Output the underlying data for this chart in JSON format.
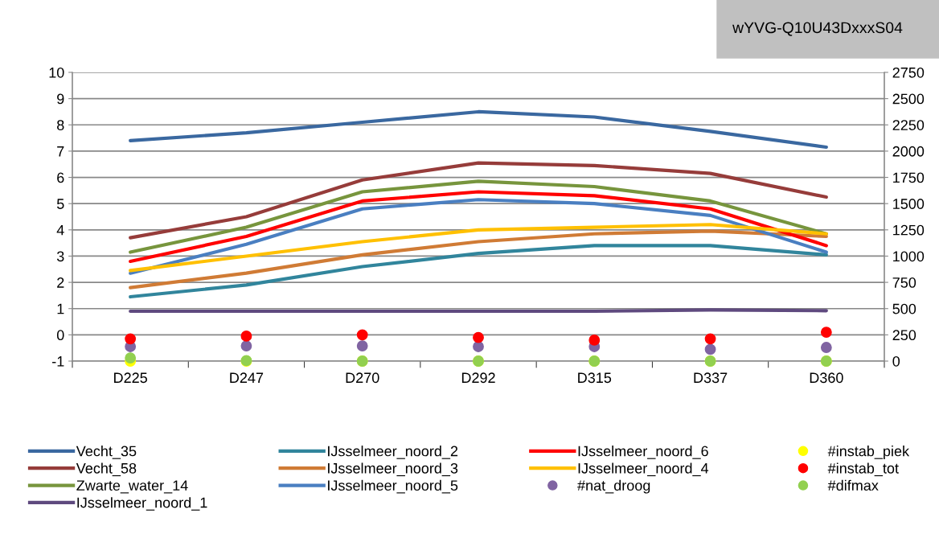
{
  "chart_data": {
    "type": "line",
    "title": "wYVG-Q10U43DxxxS04",
    "categories": [
      "D225",
      "D247",
      "D270",
      "D292",
      "D315",
      "D337",
      "D360"
    ],
    "ylim": [
      -1,
      10
    ],
    "yticks": [
      -1,
      0,
      1,
      2,
      3,
      4,
      5,
      6,
      7,
      8,
      9,
      10
    ],
    "y2lim": [
      0,
      2750
    ],
    "y2ticks": [
      0,
      250,
      500,
      750,
      1000,
      1250,
      1500,
      1750,
      2000,
      2250,
      2500,
      2750
    ],
    "grid": "y",
    "legend": "bottom",
    "series": [
      {
        "name": "Vecht_35",
        "color": "#3a68a0",
        "values": [
          7.4,
          7.7,
          8.1,
          8.5,
          8.3,
          7.75,
          7.15
        ]
      },
      {
        "name": "Vecht_58",
        "color": "#963c3a",
        "values": [
          3.7,
          4.5,
          5.9,
          6.55,
          6.45,
          6.15,
          5.25
        ]
      },
      {
        "name": "Zwarte_water_14",
        "color": "#77953d",
        "values": [
          3.15,
          4.1,
          5.45,
          5.85,
          5.65,
          5.1,
          3.85
        ]
      },
      {
        "name": "IJsselmeer_noord_1",
        "color": "#5f4a7f",
        "values": [
          0.9,
          0.9,
          0.9,
          0.9,
          0.9,
          0.95,
          0.92
        ]
      },
      {
        "name": "IJsselmeer_noord_2",
        "color": "#31859c",
        "values": [
          1.45,
          1.9,
          2.6,
          3.1,
          3.4,
          3.4,
          3.05
        ]
      },
      {
        "name": "IJsselmeer_noord_3",
        "color": "#d07b35",
        "values": [
          1.8,
          2.35,
          3.05,
          3.55,
          3.85,
          3.95,
          3.75
        ]
      },
      {
        "name": "IJsselmeer_noord_5",
        "color": "#4a7fc1",
        "values": [
          2.35,
          3.45,
          4.8,
          5.15,
          5.0,
          4.55,
          3.15
        ]
      },
      {
        "name": "IJsselmeer_noord_6",
        "color": "#ff0000",
        "values": [
          2.8,
          3.75,
          5.1,
          5.45,
          5.3,
          4.8,
          3.4
        ]
      },
      {
        "name": "IJsselmeer_noord_4",
        "color": "#ffc000",
        "values": [
          2.45,
          3.0,
          3.55,
          4.0,
          4.1,
          4.2,
          3.85
        ]
      },
      {
        "name": "#nat_droog",
        "type": "scatter",
        "axis": "y2",
        "color": "#8064a2",
        "values": [
          138,
          145,
          145,
          138,
          138,
          112,
          130
        ]
      },
      {
        "name": "#instab_piek",
        "type": "scatter",
        "axis": "y2",
        "color": "#ffff00",
        "values": [
          0,
          0,
          0,
          0,
          0,
          0,
          0
        ]
      },
      {
        "name": "#instab_tot",
        "type": "scatter",
        "axis": "y2",
        "color": "#ff0000",
        "values": [
          212,
          238,
          250,
          225,
          200,
          212,
          275
        ]
      },
      {
        "name": "#difmax",
        "type": "scatter",
        "axis": "y2",
        "color": "#92d050",
        "values": [
          30,
          5,
          0,
          0,
          0,
          0,
          0
        ]
      }
    ]
  }
}
